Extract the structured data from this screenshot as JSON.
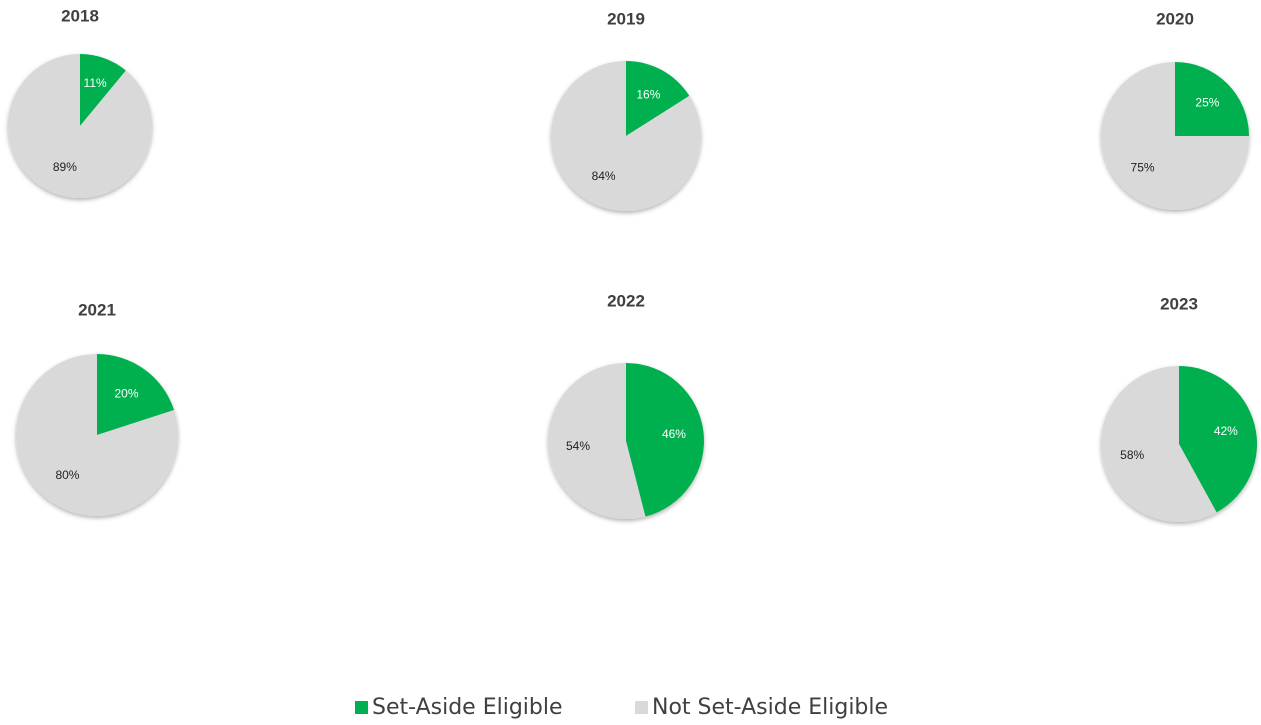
{
  "chart_data": [
    {
      "type": "pie",
      "title": "2018",
      "values": [
        11,
        89
      ],
      "value_labels": [
        "11%",
        "89%"
      ]
    },
    {
      "type": "pie",
      "title": "2019",
      "values": [
        16,
        84
      ],
      "value_labels": [
        "16%",
        "84%"
      ]
    },
    {
      "type": "pie",
      "title": "2020",
      "values": [
        25,
        75
      ],
      "value_labels": [
        "25%",
        "75%"
      ]
    },
    {
      "type": "pie",
      "title": "2021",
      "values": [
        20,
        80
      ],
      "value_labels": [
        "20%",
        "80%"
      ]
    },
    {
      "type": "pie",
      "title": "2022",
      "values": [
        46,
        54
      ],
      "value_labels": [
        "46%",
        "54%"
      ]
    },
    {
      "type": "pie",
      "title": "2023",
      "values": [
        42,
        58
      ],
      "value_labels": [
        "42%",
        "58%"
      ]
    }
  ],
  "legend": [
    {
      "name": "Set-Aside Eligible",
      "color": "#00b050"
    },
    {
      "name": "Not Set-Aside Eligible",
      "color": "#d9d9d9"
    }
  ]
}
